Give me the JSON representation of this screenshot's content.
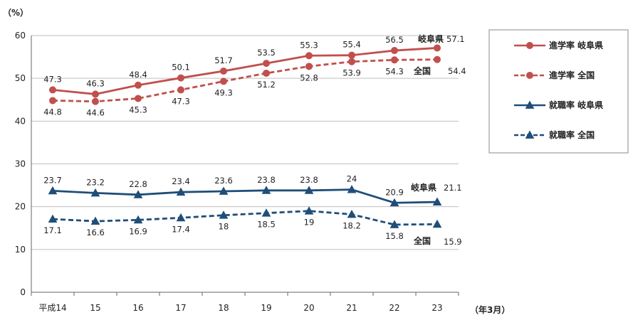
{
  "chart_data": {
    "type": "line",
    "y_unit": "（%）",
    "x_unit": "（年3月）",
    "categories": [
      "平成14",
      "15",
      "16",
      "17",
      "18",
      "19",
      "20",
      "21",
      "22",
      "23"
    ],
    "ylim": [
      0,
      60
    ],
    "yticks": [
      0,
      10,
      20,
      30,
      40,
      50,
      60
    ],
    "grid": true,
    "legend_position": "right",
    "series": [
      {
        "name": "進学率 岐阜県",
        "values": [
          47.3,
          46.3,
          48.4,
          50.1,
          51.7,
          53.5,
          55.3,
          55.4,
          56.5,
          57.1
        ],
        "color": "#c0504d",
        "marker": "circle",
        "dash": "solid",
        "label_pos": "above"
      },
      {
        "name": "進学率 全国",
        "values": [
          44.8,
          44.6,
          45.3,
          47.3,
          49.3,
          51.2,
          52.8,
          53.9,
          54.3,
          54.4
        ],
        "color": "#c0504d",
        "marker": "circle",
        "dash": "dashed",
        "label_pos": "below"
      },
      {
        "name": "就職率 岐阜県",
        "values": [
          23.7,
          23.2,
          22.8,
          23.4,
          23.6,
          23.8,
          23.8,
          24.0,
          20.9,
          21.1
        ],
        "color": "#1f4e79",
        "marker": "triangle",
        "dash": "solid",
        "label_pos": "above"
      },
      {
        "name": "就職率 全国",
        "values": [
          17.1,
          16.6,
          16.9,
          17.4,
          18.0,
          18.5,
          19.0,
          18.2,
          15.8,
          15.9
        ],
        "color": "#1f4e79",
        "marker": "triangle",
        "dash": "dashed",
        "label_pos": "below"
      }
    ],
    "end_labels": [
      {
        "region": "岐阜県",
        "value": "57.1",
        "series": 0
      },
      {
        "region": "全国",
        "value": "54.4",
        "series": 1
      },
      {
        "region": "岐阜県",
        "value": "21.1",
        "series": 2
      },
      {
        "region": "全国",
        "value": "15.9",
        "series": 3
      }
    ]
  }
}
